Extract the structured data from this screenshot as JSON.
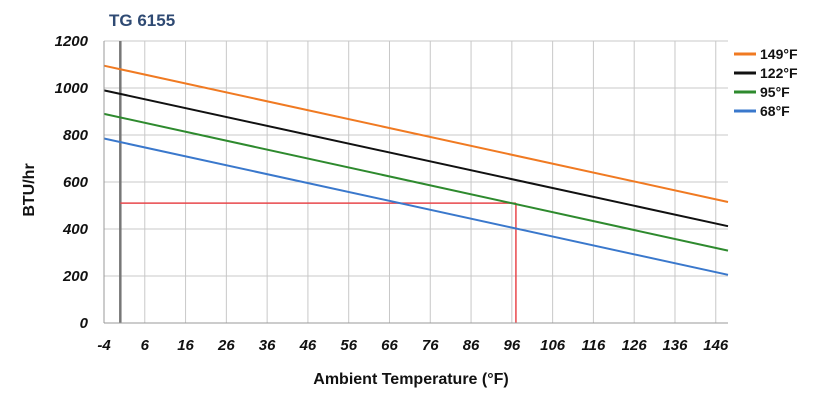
{
  "chart_data": {
    "type": "line",
    "title": "TG 6155",
    "xlabel": "Ambient Temperature (°F)",
    "ylabel": "BTU/hr",
    "xlim": [
      -4,
      149
    ],
    "ylim": [
      0,
      1200
    ],
    "x_ticks": [
      -4,
      6,
      16,
      26,
      36,
      46,
      56,
      66,
      76,
      86,
      96,
      106,
      116,
      126,
      136,
      146
    ],
    "x_tick_labels": [
      "-4",
      "6",
      "16",
      "26",
      "36",
      "46",
      "56",
      "66",
      "76",
      "86",
      "96",
      "106",
      "116",
      "126",
      "136",
      "146"
    ],
    "y_ticks": [
      0,
      200,
      400,
      600,
      800,
      1000,
      1200
    ],
    "y_tick_labels": [
      "0",
      "200",
      "400",
      "600",
      "800",
      "1000",
      "1200"
    ],
    "grid": true,
    "legend_position": "top-right",
    "series": [
      {
        "name": "149°F",
        "color": "#f07a22",
        "x": [
          -4,
          149
        ],
        "y": [
          1095,
          515
        ]
      },
      {
        "name": "122°F",
        "color": "#111111",
        "x": [
          -4,
          149
        ],
        "y": [
          990,
          412
        ]
      },
      {
        "name": "95°F",
        "color": "#2e8a2e",
        "x": [
          -4,
          149
        ],
        "y": [
          890,
          308
        ]
      },
      {
        "name": "68°F",
        "color": "#3a78cc",
        "x": [
          -4,
          149
        ],
        "y": [
          785,
          205
        ]
      }
    ],
    "reference_lines": {
      "color": "#e8474b",
      "horizontal": {
        "y": 510,
        "x_from": 0,
        "x_to": 97
      },
      "vertical": {
        "x": 97,
        "y_from": 0,
        "y_to": 510
      }
    },
    "marker_line": {
      "x": 0,
      "color": "#777777"
    }
  }
}
